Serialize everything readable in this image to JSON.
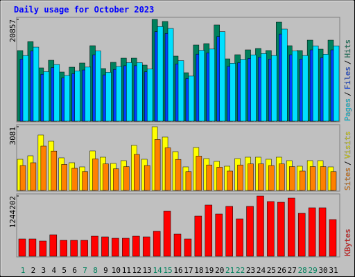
{
  "chart_data": {
    "type": "bar",
    "title": "Daily usage for October 2023",
    "categories": [
      "1",
      "2",
      "3",
      "4",
      "5",
      "6",
      "7",
      "8",
      "9",
      "10",
      "11",
      "12",
      "13",
      "14",
      "15",
      "16",
      "17",
      "18",
      "19",
      "20",
      "21",
      "22",
      "23",
      "24",
      "25",
      "26",
      "27",
      "28",
      "29",
      "30",
      "31"
    ],
    "weekend_days": [
      0,
      6,
      7,
      13,
      14,
      20,
      21,
      27,
      28
    ],
    "weekend_color": "#00805c",
    "legend_separator": "/",
    "panels": [
      {
        "ylim": [
          0,
          20857
        ],
        "yticks": [
          20857
        ],
        "series": [
          {
            "name": "Pages",
            "color": "#00e0ff",
            "values": [
              13457,
              15177,
              10161,
              11613,
              9370,
              10293,
              11086,
              14384,
              10029,
              11218,
              12009,
              12009,
              10689,
              19397,
              19004,
              12405,
              9238,
              14516,
              14780,
              18343,
              11877,
              12668,
              13593,
              13857,
              13461,
              18872,
              14384,
              13461,
              15440,
              13725,
              15440
            ]
          },
          {
            "name": "Files",
            "color": "#0040ff",
            "values": [
              12734,
              14361,
              9615,
              10989,
              8866,
              9740,
              10490,
              13611,
              9490,
              10615,
              11363,
              11363,
              10115,
              18354,
              17982,
              11738,
              8741,
              13736,
              13986,
              17357,
              11238,
              11987,
              12862,
              13112,
              12737,
              17857,
              13611,
              12737,
              14610,
              12987,
              14610
            ]
          },
          {
            "name": "Hits",
            "color": "#00805c",
            "values": [
              14470,
              16319,
              10926,
              12487,
              10075,
              11068,
              11920,
              15467,
              10784,
              12062,
              12913,
              12913,
              11494,
              20857,
              20434,
              13339,
              9933,
              15609,
              15893,
              19724,
              12771,
              13622,
              14616,
              14900,
              14474,
              20292,
              15467,
              14474,
              16602,
              14758,
              16602
            ]
          }
        ]
      },
      {
        "ylim": [
          0,
          3081
        ],
        "yticks": [
          3081
        ],
        "series": [
          {
            "name": "Sites",
            "color": "#ff8000",
            "values": [
              1206,
              1340,
              2144,
              1903,
              1260,
              1072,
              911,
              1528,
              1286,
              1046,
              1153,
              1742,
              1206,
              2465,
              2064,
              1501,
              911,
              1662,
              1233,
              1126,
              938,
              1233,
              1286,
              1286,
              1206,
              1286,
              1153,
              938,
              1153,
              1153,
              911
            ]
          },
          {
            "name": "Visits",
            "color": "#ffff00",
            "values": [
              1507,
              1675,
              2680,
              2379,
              1575,
              1340,
              1139,
              1910,
              1608,
              1307,
              1441,
              2178,
              1508,
              3081,
              2580,
              1876,
              1139,
              2077,
              1541,
              1407,
              1173,
              1541,
              1608,
              1608,
              1508,
              1608,
              1441,
              1173,
              1441,
              1441,
              1139
            ]
          }
        ]
      },
      {
        "ylim": [
          0,
          1244202
        ],
        "yticks": [
          1244202
        ],
        "series": [
          {
            "name": "KBytes",
            "color": "#ff0000",
            "values": [
              357525,
              357525,
              314622,
              443331,
              328923,
              328923,
              328923,
              414729,
              400428,
              371826,
              371826,
              414729,
              400428,
              514836,
              929565,
              457632,
              357525,
              829458,
              1058274,
              872361,
              1029672,
              772254,
              1029672,
              1244202,
              1129779,
              1115478,
              1201284,
              886662,
              1001070,
              1001070,
              757953
            ]
          }
        ]
      }
    ]
  }
}
